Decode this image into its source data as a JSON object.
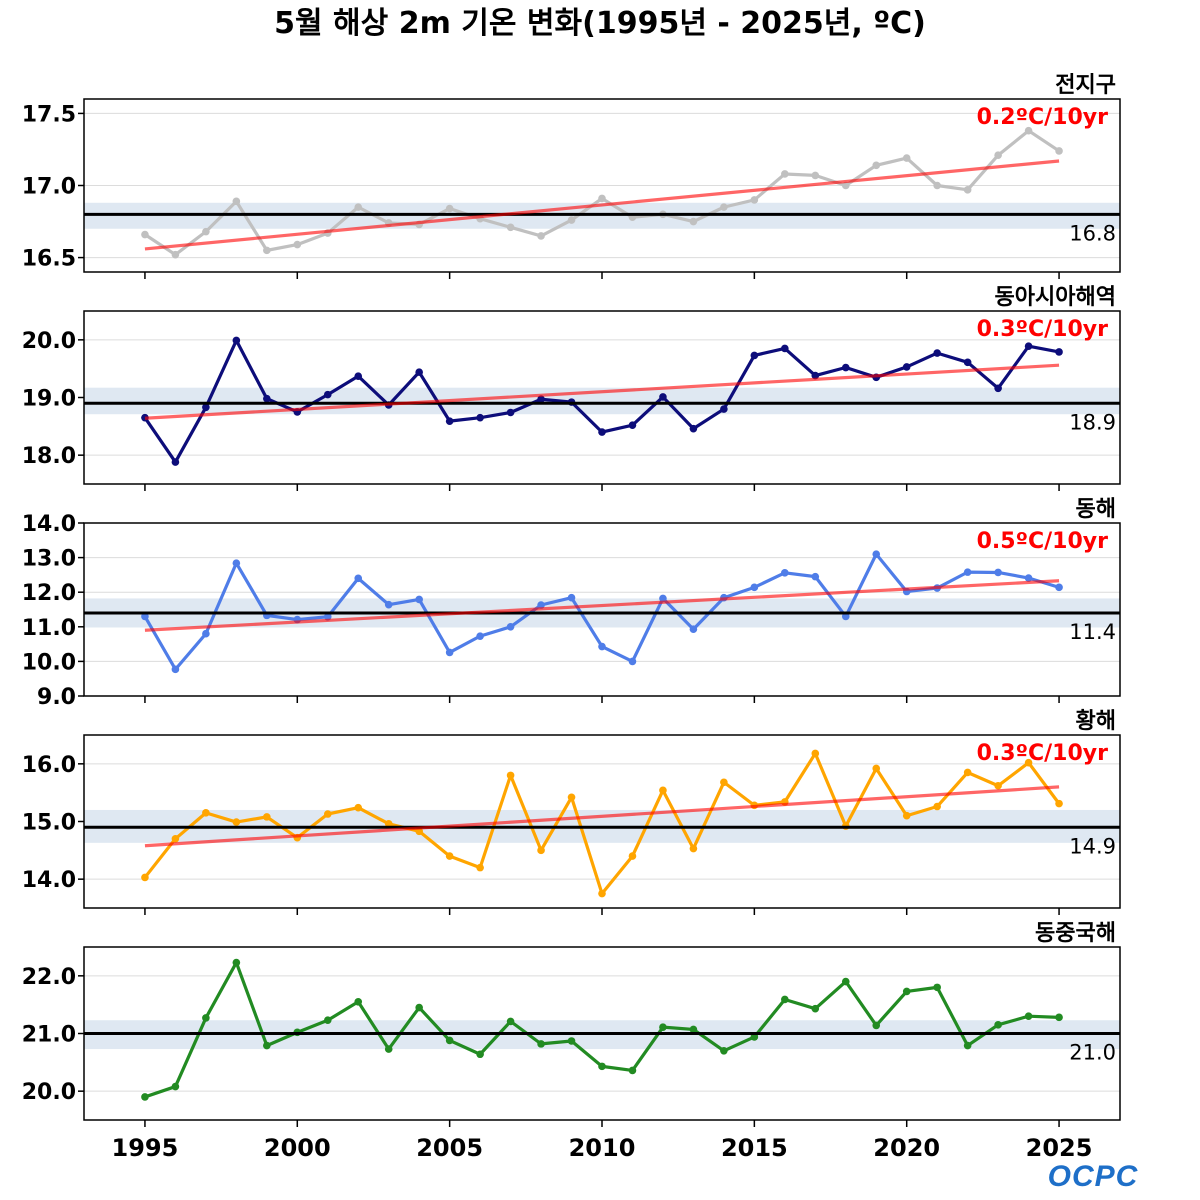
{
  "chart_data": {
    "type": "line",
    "title": "5월 해상 2m 기온 변화(1995년 - 2025년, ºC)",
    "x": [
      1995,
      1996,
      1997,
      1998,
      1999,
      2000,
      2001,
      2002,
      2003,
      2004,
      2005,
      2006,
      2007,
      2008,
      2009,
      2010,
      2011,
      2012,
      2013,
      2014,
      2015,
      2016,
      2017,
      2018,
      2019,
      2020,
      2021,
      2022,
      2023,
      2024,
      2025
    ],
    "x_ticks": [
      "1995",
      "2000",
      "2005",
      "2010",
      "2015",
      "2020",
      "2025"
    ],
    "xlim": [
      1993,
      2027
    ],
    "grid": "horizontal",
    "panels": [
      {
        "name": "전지구",
        "color": "#c0c0c0",
        "trend_label": "0.2ºC/10yr",
        "baseline": 16.8,
        "baseline_label": "16.8",
        "band": [
          16.7,
          16.88
        ],
        "ylim": [
          16.4,
          17.6
        ],
        "y_ticks": [
          "16.5",
          "17.0",
          "17.5"
        ],
        "y_tick_values": [
          16.5,
          17.0,
          17.5
        ],
        "trend": [
          16.56,
          17.17
        ],
        "values": [
          16.66,
          16.52,
          16.68,
          16.89,
          16.55,
          16.59,
          16.67,
          16.85,
          16.74,
          16.73,
          16.84,
          16.77,
          16.71,
          16.65,
          16.76,
          16.91,
          16.78,
          16.8,
          16.75,
          16.85,
          16.9,
          17.08,
          17.07,
          17.0,
          17.14,
          17.19,
          17.0,
          16.97,
          17.21,
          17.38,
          17.24
        ]
      },
      {
        "name": "동아시아해역",
        "color": "#0d0d7a",
        "trend_label": "0.3ºC/10yr",
        "baseline": 18.9,
        "baseline_label": "18.9",
        "band": [
          18.71,
          19.17
        ],
        "ylim": [
          17.5,
          20.5
        ],
        "y_ticks": [
          "18.0",
          "19.0",
          "20.0"
        ],
        "y_tick_values": [
          18.0,
          19.0,
          20.0
        ],
        "trend": [
          18.64,
          19.56
        ],
        "values": [
          18.65,
          17.88,
          18.83,
          19.99,
          18.98,
          18.75,
          19.05,
          19.37,
          18.87,
          19.44,
          18.59,
          18.65,
          18.74,
          18.97,
          18.92,
          18.4,
          18.52,
          19.01,
          18.46,
          18.8,
          19.73,
          19.85,
          19.38,
          19.52,
          19.35,
          19.53,
          19.77,
          19.61,
          19.16,
          19.89,
          19.79
        ]
      },
      {
        "name": "동해",
        "color": "#4f7de8",
        "trend_label": "0.5ºC/10yr",
        "baseline": 11.4,
        "baseline_label": "11.4",
        "band": [
          10.98,
          11.82
        ],
        "ylim": [
          9.0,
          14.0
        ],
        "y_ticks": [
          "9.0",
          "10.0",
          "11.0",
          "12.0",
          "13.0",
          "14.0"
        ],
        "y_tick_values": [
          9.0,
          10.0,
          11.0,
          12.0,
          13.0,
          14.0
        ],
        "trend": [
          10.9,
          12.33
        ],
        "values": [
          11.3,
          9.77,
          10.8,
          12.84,
          11.33,
          11.21,
          11.29,
          12.4,
          11.64,
          11.79,
          10.26,
          10.73,
          11.0,
          11.63,
          11.84,
          10.43,
          10.0,
          11.82,
          10.93,
          11.84,
          12.14,
          12.56,
          12.45,
          11.3,
          13.1,
          12.02,
          12.12,
          12.58,
          12.57,
          12.41,
          12.14
        ]
      },
      {
        "name": "황해",
        "color": "#ffa500",
        "trend_label": "0.3ºC/10yr",
        "baseline": 14.9,
        "baseline_label": "14.9",
        "band": [
          14.63,
          15.2
        ],
        "ylim": [
          13.5,
          16.5
        ],
        "y_ticks": [
          "14.0",
          "15.0",
          "16.0"
        ],
        "y_tick_values": [
          14.0,
          15.0,
          16.0
        ],
        "trend": [
          14.58,
          15.6
        ],
        "values": [
          14.03,
          14.7,
          15.15,
          14.99,
          15.08,
          14.72,
          15.13,
          15.24,
          14.96,
          14.83,
          14.4,
          14.2,
          15.8,
          14.5,
          15.42,
          13.75,
          14.4,
          15.54,
          14.53,
          15.68,
          15.28,
          15.34,
          16.18,
          14.92,
          15.92,
          15.1,
          15.26,
          15.85,
          15.62,
          16.02,
          15.31
        ]
      },
      {
        "name": "동중국해",
        "color": "#228b22",
        "trend_label": "",
        "baseline": 21.0,
        "baseline_label": "21.0",
        "band": [
          20.73,
          21.23
        ],
        "ylim": [
          19.5,
          22.5
        ],
        "y_ticks": [
          "20.0",
          "21.0",
          "22.0"
        ],
        "y_tick_values": [
          20.0,
          21.0,
          22.0
        ],
        "trend": null,
        "values": [
          19.9,
          20.08,
          21.27,
          22.23,
          20.79,
          21.02,
          21.23,
          21.55,
          20.73,
          21.45,
          20.88,
          20.64,
          21.21,
          20.82,
          20.87,
          20.43,
          20.36,
          21.11,
          21.07,
          20.7,
          20.94,
          21.59,
          21.43,
          21.9,
          21.14,
          21.73,
          21.8,
          20.79,
          21.15,
          21.3,
          21.28
        ]
      }
    ]
  },
  "colors": {
    "trend": "#ff0000",
    "baseline": "#000000",
    "band": "#dfe8f2",
    "grid": "#dcdcdc",
    "logo": "#1e6fc8"
  },
  "logo": "OCPC"
}
